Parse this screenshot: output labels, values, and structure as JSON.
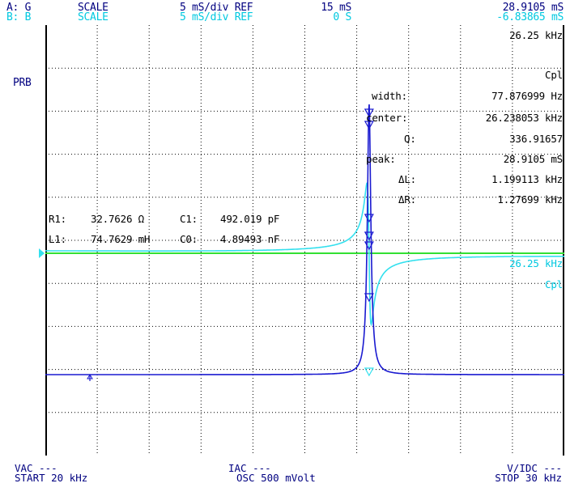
{
  "header": {
    "row_a": {
      "ch": "A: G",
      "scale": "SCALE",
      "div_ref": "5 mS/div REF",
      "ref": "15 mS",
      "marker": "28.9105 mS"
    },
    "row_b": {
      "ch": "B: B",
      "scale": "SCALE",
      "div_ref": "5 mS/div REF",
      "ref": "0 S",
      "marker": "-6.83865 mS"
    }
  },
  "prb_label": "PRB",
  "upper_right": {
    "freq": "26.25 kHz",
    "mode": "Cpl"
  },
  "lower_right": {
    "freq": "26.25 kHz",
    "mode": "Cpl"
  },
  "analysis": [
    {
      "label": "width:",
      "value": "77.876999 Hz"
    },
    {
      "label": "center:",
      "value": "26.238053 kHz"
    },
    {
      "label": "Q:",
      "value": "336.91657"
    },
    {
      "label": "peak:",
      "value": "28.9105 mS"
    },
    {
      "label": "ΔL:",
      "value": "1.199113 kHz"
    },
    {
      "label": "ΔR:",
      "value": "1.27699 kHz"
    }
  ],
  "equivalent_circuit": {
    "r1_label": "R1:",
    "r1_value": "32.7626 Ω",
    "c1_label": "C1:",
    "c1_value": "492.019 pF",
    "l1_label": "L1:",
    "l1_value": "74.7629 mH",
    "c0_label": "C0:",
    "c0_value": "4.89493 nF"
  },
  "footer": {
    "vac": "VAC ---",
    "start": "START 20 kHz",
    "iac": "IAC ---",
    "osc": "OSC 500 mVolt",
    "vidc": "V/IDC ---",
    "stop": "STOP 30 kHz"
  },
  "colors": {
    "trace_a": "#1a1ad0",
    "trace_b": "#33e0ee",
    "ref_line": "#33e033",
    "grid": "#000000",
    "text_a": "#000080",
    "text_b": "#00c8e0"
  },
  "chart_data": {
    "type": "line",
    "x_range_khz": [
      20,
      30
    ],
    "series": [
      {
        "trace": "A",
        "quantity": "G",
        "scale": "5 mS/div",
        "ref": "15 mS",
        "peak_x_khz": 26.238053,
        "peak_y": "28.9105 mS"
      },
      {
        "trace": "B",
        "quantity": "B",
        "scale": "5 mS/div",
        "ref": "0 S"
      }
    ],
    "grid": true
  }
}
